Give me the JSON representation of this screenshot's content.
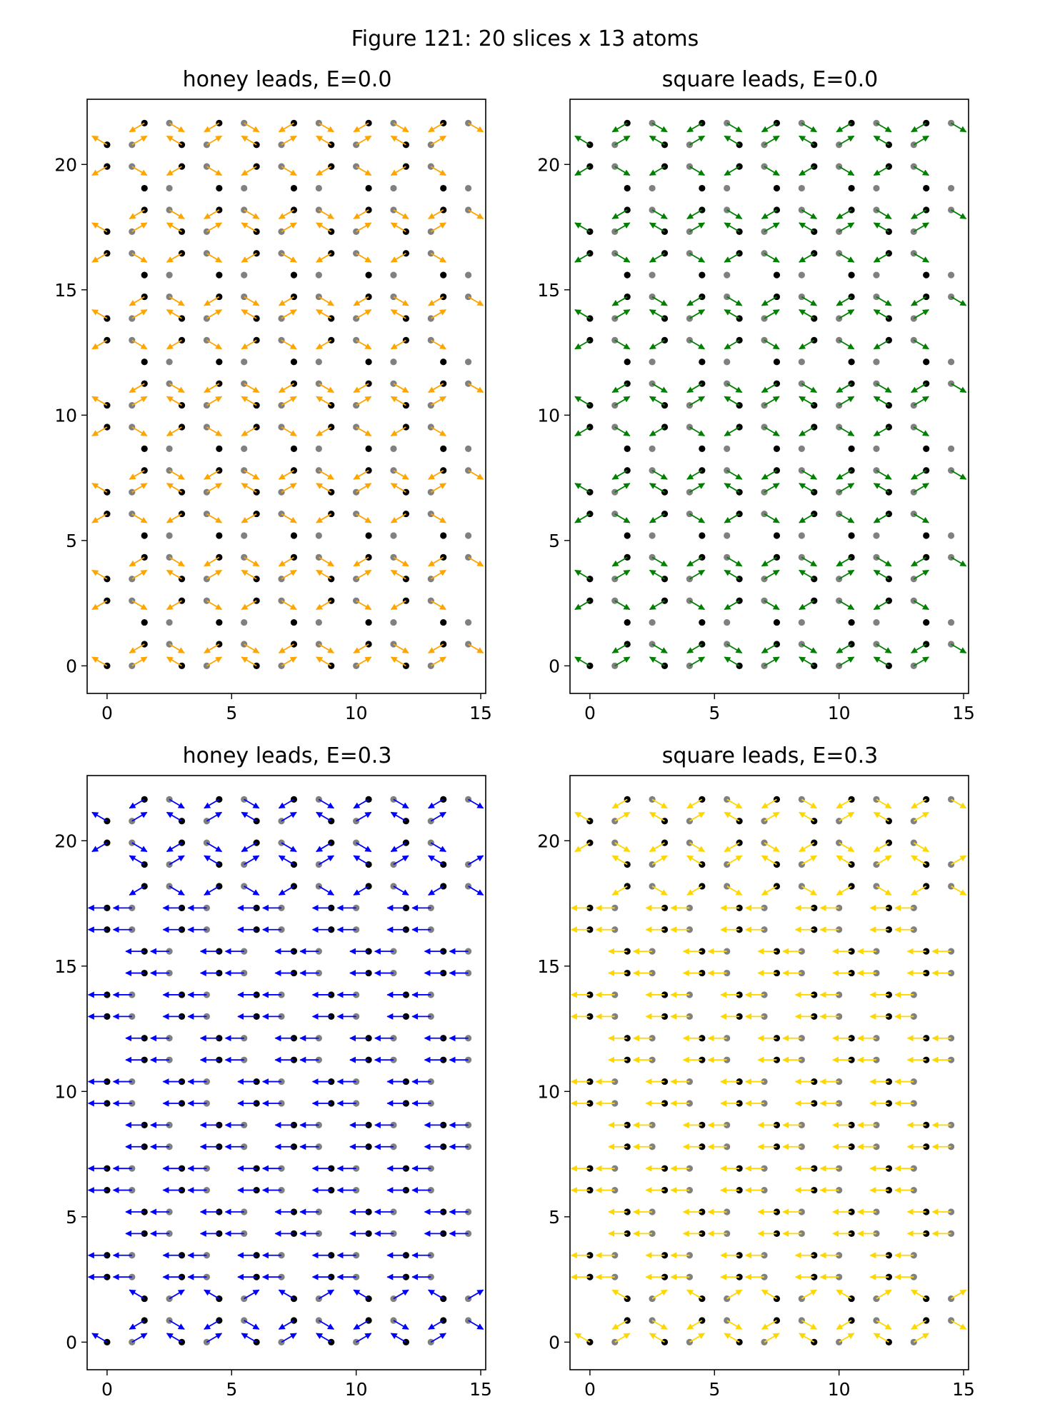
{
  "figure": {
    "title": "Figure 121: 20 slices x 13 atoms"
  },
  "chart_data": [
    {
      "type": "scatter",
      "title": "honey leads, E=0.0",
      "arrow_color": "#ffa500",
      "pattern": "e0",
      "xlim": [
        -0.8,
        15.2
      ],
      "ylim": [
        -1.1,
        22.6
      ],
      "xticks": [
        0,
        5,
        10,
        15
      ],
      "yticks": [
        0,
        5,
        10,
        15,
        20
      ],
      "xtick_labels": [
        "0",
        "5",
        "10",
        "15"
      ],
      "ytick_labels": [
        "0",
        "5",
        "10",
        "15",
        "20"
      ]
    },
    {
      "type": "scatter",
      "title": "square leads, E=0.0",
      "arrow_color": "#008000",
      "pattern": "e0",
      "xlim": [
        -0.8,
        15.2
      ],
      "ylim": [
        -1.1,
        22.6
      ],
      "xticks": [
        0,
        5,
        10,
        15
      ],
      "yticks": [
        0,
        5,
        10,
        15,
        20
      ],
      "xtick_labels": [
        "0",
        "5",
        "10",
        "15"
      ],
      "ytick_labels": [
        "0",
        "5",
        "10",
        "15",
        "20"
      ]
    },
    {
      "type": "scatter",
      "title": "honey leads, E=0.3",
      "arrow_color": "#0000ff",
      "pattern": "e3",
      "xlim": [
        -0.8,
        15.2
      ],
      "ylim": [
        -1.1,
        22.6
      ],
      "xticks": [
        0,
        5,
        10,
        15
      ],
      "yticks": [
        0,
        5,
        10,
        15,
        20
      ],
      "xtick_labels": [
        "0",
        "5",
        "10",
        "15"
      ],
      "ytick_labels": [
        "0",
        "5",
        "10",
        "15",
        "20"
      ]
    },
    {
      "type": "scatter",
      "title": "square leads, E=0.3",
      "arrow_color": "#ffd700",
      "pattern": "e3",
      "xlim": [
        -0.8,
        15.2
      ],
      "ylim": [
        -1.1,
        22.6
      ],
      "xticks": [
        0,
        5,
        10,
        15
      ],
      "yticks": [
        0,
        5,
        10,
        15,
        20
      ],
      "xtick_labels": [
        "0",
        "5",
        "10",
        "15"
      ],
      "ytick_labels": [
        "0",
        "5",
        "10",
        "15",
        "20"
      ]
    }
  ],
  "lattice": {
    "slices": 20,
    "atoms_per_slice": 13,
    "atom_colors": [
      "#000000",
      "#808080"
    ],
    "row_spacing": 1.732,
    "column_spacing": 3.0
  }
}
